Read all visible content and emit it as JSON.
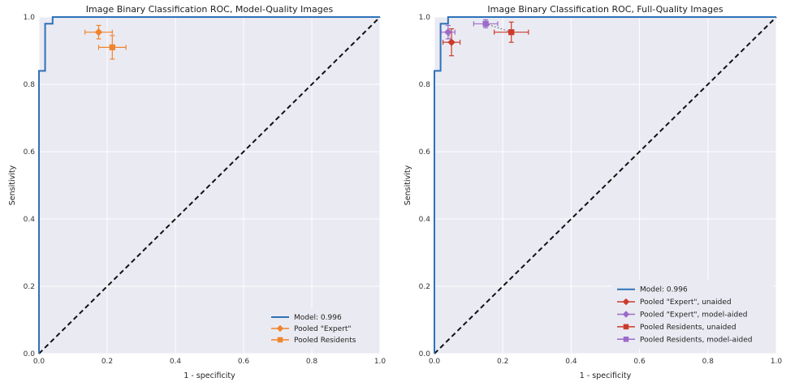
{
  "chart_data": [
    {
      "type": "line",
      "title": "Image Binary Classification ROC, Model-Quality Images",
      "xlabel": "1 - specificity",
      "ylabel": "Sensitivity",
      "xlim": [
        0,
        1
      ],
      "ylim": [
        0,
        1
      ],
      "xticks": [
        "0.0",
        "0.2",
        "0.4",
        "0.6",
        "0.8",
        "1.0"
      ],
      "yticks": [
        "0.0",
        "0.2",
        "0.4",
        "0.6",
        "0.8",
        "1.0"
      ],
      "grid": true,
      "legend_position": "bottom-right",
      "roc": {
        "name": "Model: 0.996",
        "color": "#2d72b8",
        "x": [
          0,
          0,
          0.018,
          0.018,
          0.04,
          0.04,
          1.0
        ],
        "y": [
          0,
          0.84,
          0.84,
          0.98,
          0.98,
          1.0,
          1.0
        ]
      },
      "chance_line": {
        "x": [
          0,
          1
        ],
        "y": [
          0,
          1
        ]
      },
      "points": [
        {
          "name": "Pooled \"Expert\"",
          "marker": "diamond",
          "color": "#f0852d",
          "x": 0.175,
          "y": 0.955,
          "xerr": 0.04,
          "yerr": 0.02
        },
        {
          "name": "Pooled Residents",
          "marker": "square",
          "color": "#f0852d",
          "x": 0.215,
          "y": 0.91,
          "xerr": 0.04,
          "yerr": 0.035
        }
      ]
    },
    {
      "type": "line",
      "title": "Image Binary Classification ROC, Full-Quality Images",
      "xlabel": "1 - specificity",
      "ylabel": "Sensitivity",
      "xlim": [
        0,
        1
      ],
      "ylim": [
        0,
        1
      ],
      "xticks": [
        "0.0",
        "0.2",
        "0.4",
        "0.6",
        "0.8",
        "1.0"
      ],
      "yticks": [
        "0.0",
        "0.2",
        "0.4",
        "0.6",
        "0.8",
        "1.0"
      ],
      "grid": true,
      "legend_position": "bottom-right",
      "roc": {
        "name": "Model: 0.996",
        "color": "#2d72b8",
        "x": [
          0,
          0,
          0.018,
          0.018,
          0.04,
          0.04,
          1.0
        ],
        "y": [
          0,
          0.84,
          0.84,
          0.98,
          0.98,
          1.0,
          1.0
        ]
      },
      "chance_line": {
        "x": [
          0,
          1
        ],
        "y": [
          0,
          1
        ]
      },
      "points": [
        {
          "name": "Pooled \"Expert\", unaided",
          "marker": "diamond",
          "color": "#cc3a2b",
          "x": 0.05,
          "y": 0.925,
          "xerr": 0.025,
          "yerr": 0.04
        },
        {
          "name": "Pooled \"Expert\", model-aided",
          "marker": "diamond",
          "color": "#9b6bc9",
          "x": 0.04,
          "y": 0.955,
          "xerr": 0.02,
          "yerr": 0.02
        },
        {
          "name": "Pooled Residents, unaided",
          "marker": "square",
          "color": "#cc3a2b",
          "x": 0.225,
          "y": 0.955,
          "xerr": 0.05,
          "yerr": 0.03
        },
        {
          "name": "Pooled Residents, model-aided",
          "marker": "square",
          "color": "#9b6bc9",
          "x": 0.15,
          "y": 0.98,
          "xerr": 0.035,
          "yerr": 0.012
        }
      ],
      "arrows": [
        {
          "from": [
            0.225,
            0.955
          ],
          "to": [
            0.15,
            0.98
          ]
        },
        {
          "from": [
            0.05,
            0.925
          ],
          "to": [
            0.04,
            0.955
          ]
        }
      ]
    }
  ]
}
